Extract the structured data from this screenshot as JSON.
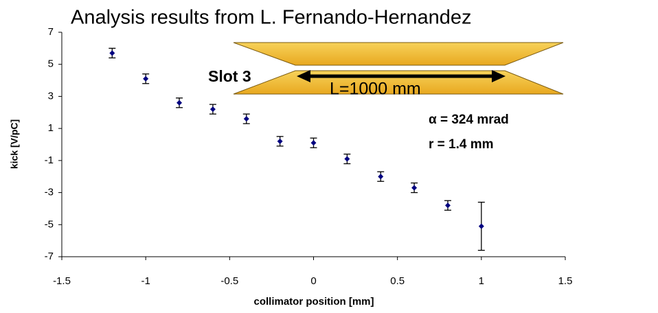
{
  "chart_data": {
    "type": "scatter",
    "title": "Analysis results from L. Fernando-Hernandez",
    "x_label": "collimator position [mm]",
    "y_label": "kick [V/pC]",
    "annotations": [
      "Slot 3",
      "L=1000 mm",
      "α = 324 mrad",
      "r = 1.4 mm"
    ],
    "x": [
      -1.2,
      -1.0,
      -0.8,
      -0.6,
      -0.4,
      -0.2,
      0,
      0.2,
      0.4,
      0.6,
      0.8,
      1.0
    ],
    "series": [
      {
        "color": "#000080",
        "values": [
          5.7,
          4.1,
          2.6,
          2.2,
          1.6,
          0.2,
          0.1,
          -0.9,
          -2.0,
          -2.7,
          -3.8,
          -5.1
        ],
        "errors": [
          0.3,
          0.3,
          0.3,
          0.3,
          0.3,
          0.3,
          0.3,
          0.3,
          0.3,
          0.3,
          0.3,
          1.5
        ]
      }
    ],
    "xlim": [
      -1.5,
      1.5
    ],
    "xticks": [
      -1.5,
      -1,
      -0.5,
      0,
      0.5,
      1,
      1.5
    ],
    "ylim": [
      -7,
      7
    ],
    "yticks": [
      -7,
      -5,
      -3,
      -1,
      1,
      3,
      5,
      7
    ],
    "grid": false
  }
}
